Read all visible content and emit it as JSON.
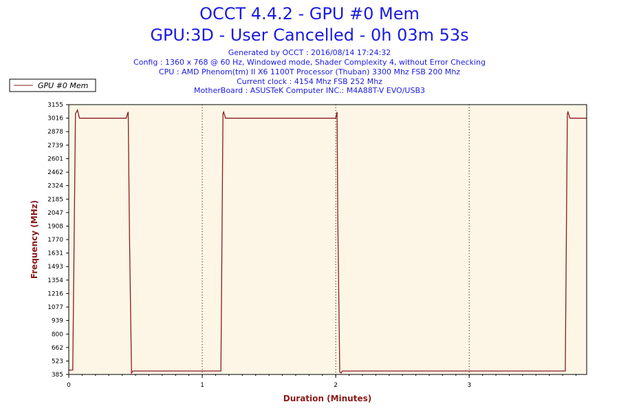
{
  "header": {
    "title_line1": "OCCT 4.4.2 - GPU #0 Mem",
    "title_line2": "GPU:3D - User Cancelled - 0h 03m 53s",
    "info_lines": [
      "Generated by OCCT : 2016/08/14 17:24:32",
      "Config : 1360 x 768 @ 60 Hz, Windowed mode, Shader Complexity 4, without Error Checking",
      "CPU : AMD Phenom(tm) II X6 1100T Processor (Thuban) 3300 Mhz FSB 200 Mhz",
      "Current clock : 4154 Mhz FSB 252 Mhz",
      "MotherBoard : ASUSTeK Computer INC.: M4A88T-V EVO/USB3"
    ]
  },
  "colors": {
    "title": "#1a1ae0",
    "plot_background": "#fdf6e6",
    "series_line": "#8b1a1a",
    "axis_title": "#8b1a1a"
  },
  "chart_data": {
    "type": "line",
    "title": "OCCT 4.4.2 - GPU #0 Mem",
    "xlabel": "Duration (Minutes)",
    "ylabel": "Frequency (MHz)",
    "xlim": [
      0,
      3.88
    ],
    "ylim": [
      385,
      3155
    ],
    "x_ticks": [
      0,
      1,
      2,
      3
    ],
    "x_tick_labels": [
      "0",
      "1",
      "2",
      "3"
    ],
    "y_ticks": [
      385,
      523,
      662,
      800,
      939,
      1077,
      1216,
      1354,
      1493,
      1631,
      1770,
      1908,
      2047,
      2185,
      2324,
      2462,
      2601,
      2739,
      2878,
      3016,
      3155
    ],
    "y_tick_labels": [
      "385",
      "523",
      "662",
      "800",
      "939",
      "1077",
      "1216",
      "1354",
      "1493",
      "1631",
      "1770",
      "1908",
      "2047",
      "2185",
      "2324",
      "2462",
      "2601",
      "2739",
      "2878",
      "3016",
      "3155"
    ],
    "grid": "vertical-dotted",
    "legend_position": "top-left",
    "series": [
      {
        "name": "GPU #0 Mem",
        "x": [
          0,
          0.03,
          0.05,
          0.065,
          0.08,
          0.43,
          0.44,
          0.445,
          0.455,
          0.47,
          0.48,
          1.14,
          1.155,
          1.16,
          1.175,
          1.2,
          2.0,
          2.01,
          2.015,
          2.03,
          2.04,
          2.05,
          3.72,
          3.735,
          3.74,
          3.755,
          3.78,
          3.88
        ],
        "y": [
          430,
          430,
          3060,
          3100,
          3016,
          3016,
          3060,
          3080,
          1800,
          400,
          420,
          420,
          3060,
          3080,
          3016,
          3016,
          3016,
          3080,
          2000,
          410,
          400,
          420,
          420,
          3060,
          3080,
          3016,
          3016,
          3016
        ]
      }
    ]
  }
}
